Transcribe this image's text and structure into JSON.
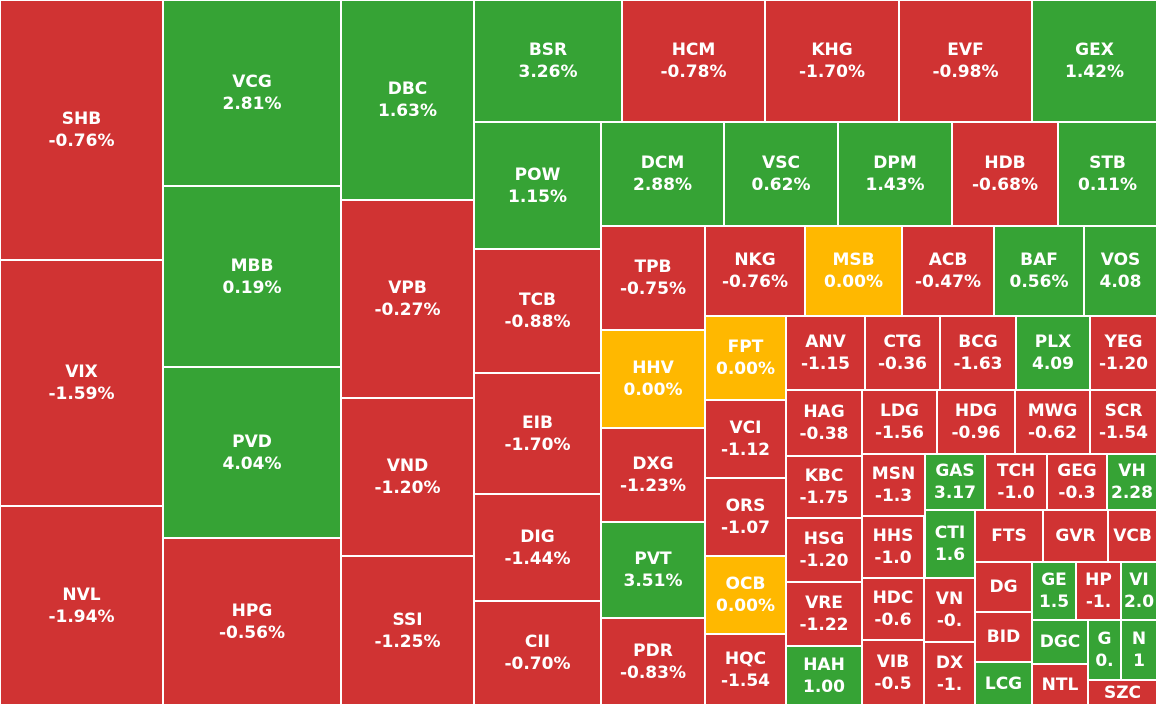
{
  "colors": {
    "up": "#36a335",
    "down": "#d03333",
    "flat": "#ffb800"
  },
  "chart_data": {
    "type": "heatmap",
    "layout": "treemap",
    "tiles": [
      {
        "symbol": "SHB",
        "change": "-0.76%",
        "value": -0.76
      },
      {
        "symbol": "VIX",
        "change": "-1.59%",
        "value": -1.59
      },
      {
        "symbol": "NVL",
        "change": "-1.94%",
        "value": -1.94
      },
      {
        "symbol": "VCG",
        "change": "2.81%",
        "value": 2.81
      },
      {
        "symbol": "MBB",
        "change": "0.19%",
        "value": 0.19
      },
      {
        "symbol": "PVD",
        "change": "4.04%",
        "value": 4.04
      },
      {
        "symbol": "HPG",
        "change": "-0.56%",
        "value": -0.56
      },
      {
        "symbol": "DBC",
        "change": "1.63%",
        "value": 1.63
      },
      {
        "symbol": "VPB",
        "change": "-0.27%",
        "value": -0.27
      },
      {
        "symbol": "VND",
        "change": "-1.20%",
        "value": -1.2
      },
      {
        "symbol": "SSI",
        "change": "-1.25%",
        "value": -1.25
      },
      {
        "symbol": "BSR",
        "change": "3.26%",
        "value": 3.26
      },
      {
        "symbol": "HCM",
        "change": "-0.78%",
        "value": -0.78
      },
      {
        "symbol": "KHG",
        "change": "-1.70%",
        "value": -1.7
      },
      {
        "symbol": "EVF",
        "change": "-0.98%",
        "value": -0.98
      },
      {
        "symbol": "GEX",
        "change": "1.42%",
        "value": 1.42
      },
      {
        "symbol": "POW",
        "change": "1.15%",
        "value": 1.15
      },
      {
        "symbol": "TCB",
        "change": "-0.88%",
        "value": -0.88
      },
      {
        "symbol": "EIB",
        "change": "-1.70%",
        "value": -1.7
      },
      {
        "symbol": "DIG",
        "change": "-1.44%",
        "value": -1.44
      },
      {
        "symbol": "CII",
        "change": "-0.70%",
        "value": -0.7
      },
      {
        "symbol": "DCM",
        "change": "2.88%",
        "value": 2.88
      },
      {
        "symbol": "VSC",
        "change": "0.62%",
        "value": 0.62
      },
      {
        "symbol": "DPM",
        "change": "1.43%",
        "value": 1.43
      },
      {
        "symbol": "HDB",
        "change": "-0.68%",
        "value": -0.68
      },
      {
        "symbol": "STB",
        "change": "0.11%",
        "value": 0.11
      },
      {
        "symbol": "TPB",
        "change": "-0.75%",
        "value": -0.75
      },
      {
        "symbol": "NKG",
        "change": "-0.76%",
        "value": -0.76
      },
      {
        "symbol": "MSB",
        "change": "0.00%",
        "value": 0
      },
      {
        "symbol": "ACB",
        "change": "-0.47%",
        "value": -0.47
      },
      {
        "symbol": "BAF",
        "change": "0.56%",
        "value": 0.56
      },
      {
        "symbol": "VOS",
        "change": "4.08",
        "value": 4.08
      },
      {
        "symbol": "HHV",
        "change": "0.00%",
        "value": 0
      },
      {
        "symbol": "DXG",
        "change": "-1.23%",
        "value": -1.23
      },
      {
        "symbol": "PVT",
        "change": "3.51%",
        "value": 3.51
      },
      {
        "symbol": "PDR",
        "change": "-0.83%",
        "value": -0.83
      },
      {
        "symbol": "FPT",
        "change": "0.00%",
        "value": 0
      },
      {
        "symbol": "VCI",
        "change": "-1.12",
        "value": -1.12
      },
      {
        "symbol": "ORS",
        "change": "-1.07",
        "value": -1.07
      },
      {
        "symbol": "OCB",
        "change": "0.00%",
        "value": 0
      },
      {
        "symbol": "HQC",
        "change": "-1.54",
        "value": -1.54
      },
      {
        "symbol": "ANV",
        "change": "-1.15",
        "value": -1.15
      },
      {
        "symbol": "CTG",
        "change": "-0.36",
        "value": -0.36
      },
      {
        "symbol": "BCG",
        "change": "-1.63",
        "value": -1.63
      },
      {
        "symbol": "PLX",
        "change": "4.09",
        "value": 4.09
      },
      {
        "symbol": "YEG",
        "change": "-1.20",
        "value": -1.2
      },
      {
        "symbol": "HAG",
        "change": "-0.38",
        "value": -0.38
      },
      {
        "symbol": "LDG",
        "change": "-1.56",
        "value": -1.56
      },
      {
        "symbol": "HDG",
        "change": "-0.96",
        "value": -0.96
      },
      {
        "symbol": "MWG",
        "change": "-0.62",
        "value": -0.62
      },
      {
        "symbol": "SCR",
        "change": "-1.54",
        "value": -1.54
      },
      {
        "symbol": "KBC",
        "change": "-1.75",
        "value": -1.75
      },
      {
        "symbol": "MSN",
        "change": "-1.3",
        "value": -1.3
      },
      {
        "symbol": "GAS",
        "change": "3.17",
        "value": 3.17
      },
      {
        "symbol": "TCH",
        "change": "-1.0",
        "value": -1.0
      },
      {
        "symbol": "GEG",
        "change": "-0.3",
        "value": -0.3
      },
      {
        "symbol": "VH",
        "change": "2.28",
        "value": 2.28
      },
      {
        "symbol": "HSG",
        "change": "-1.20",
        "value": -1.2
      },
      {
        "symbol": "HHS",
        "change": "-1.0",
        "value": -1.0
      },
      {
        "symbol": "CTI",
        "change": "1.6",
        "value": 1.6
      },
      {
        "symbol": "FTS",
        "change": "",
        "value": null
      },
      {
        "symbol": "GVR",
        "change": "",
        "value": null
      },
      {
        "symbol": "VCB",
        "change": "",
        "value": null
      },
      {
        "symbol": "VRE",
        "change": "-1.22",
        "value": -1.22
      },
      {
        "symbol": "HDC",
        "change": "-0.6",
        "value": -0.6
      },
      {
        "symbol": "VN",
        "change": "-0.",
        "value": null
      },
      {
        "symbol": "DG",
        "change": "",
        "value": null
      },
      {
        "symbol": "GE",
        "change": "1.5",
        "value": 1.5
      },
      {
        "symbol": "HP",
        "change": "-1.",
        "value": null
      },
      {
        "symbol": "VI",
        "change": "2.0",
        "value": 2.0
      },
      {
        "symbol": "BID",
        "change": "",
        "value": null
      },
      {
        "symbol": "DGC",
        "change": "",
        "value": null
      },
      {
        "symbol": "G",
        "change": "0.",
        "value": null
      },
      {
        "symbol": "N",
        "change": "1",
        "value": 1
      },
      {
        "symbol": "HAH",
        "change": "1.00",
        "value": 1.0
      },
      {
        "symbol": "VIB",
        "change": "-0.5",
        "value": -0.5
      },
      {
        "symbol": "DX",
        "change": "-1.",
        "value": null
      },
      {
        "symbol": "LCG",
        "change": "",
        "value": null
      },
      {
        "symbol": "NTL",
        "change": "",
        "value": null
      },
      {
        "symbol": "SZC",
        "change": "",
        "value": null
      }
    ]
  }
}
